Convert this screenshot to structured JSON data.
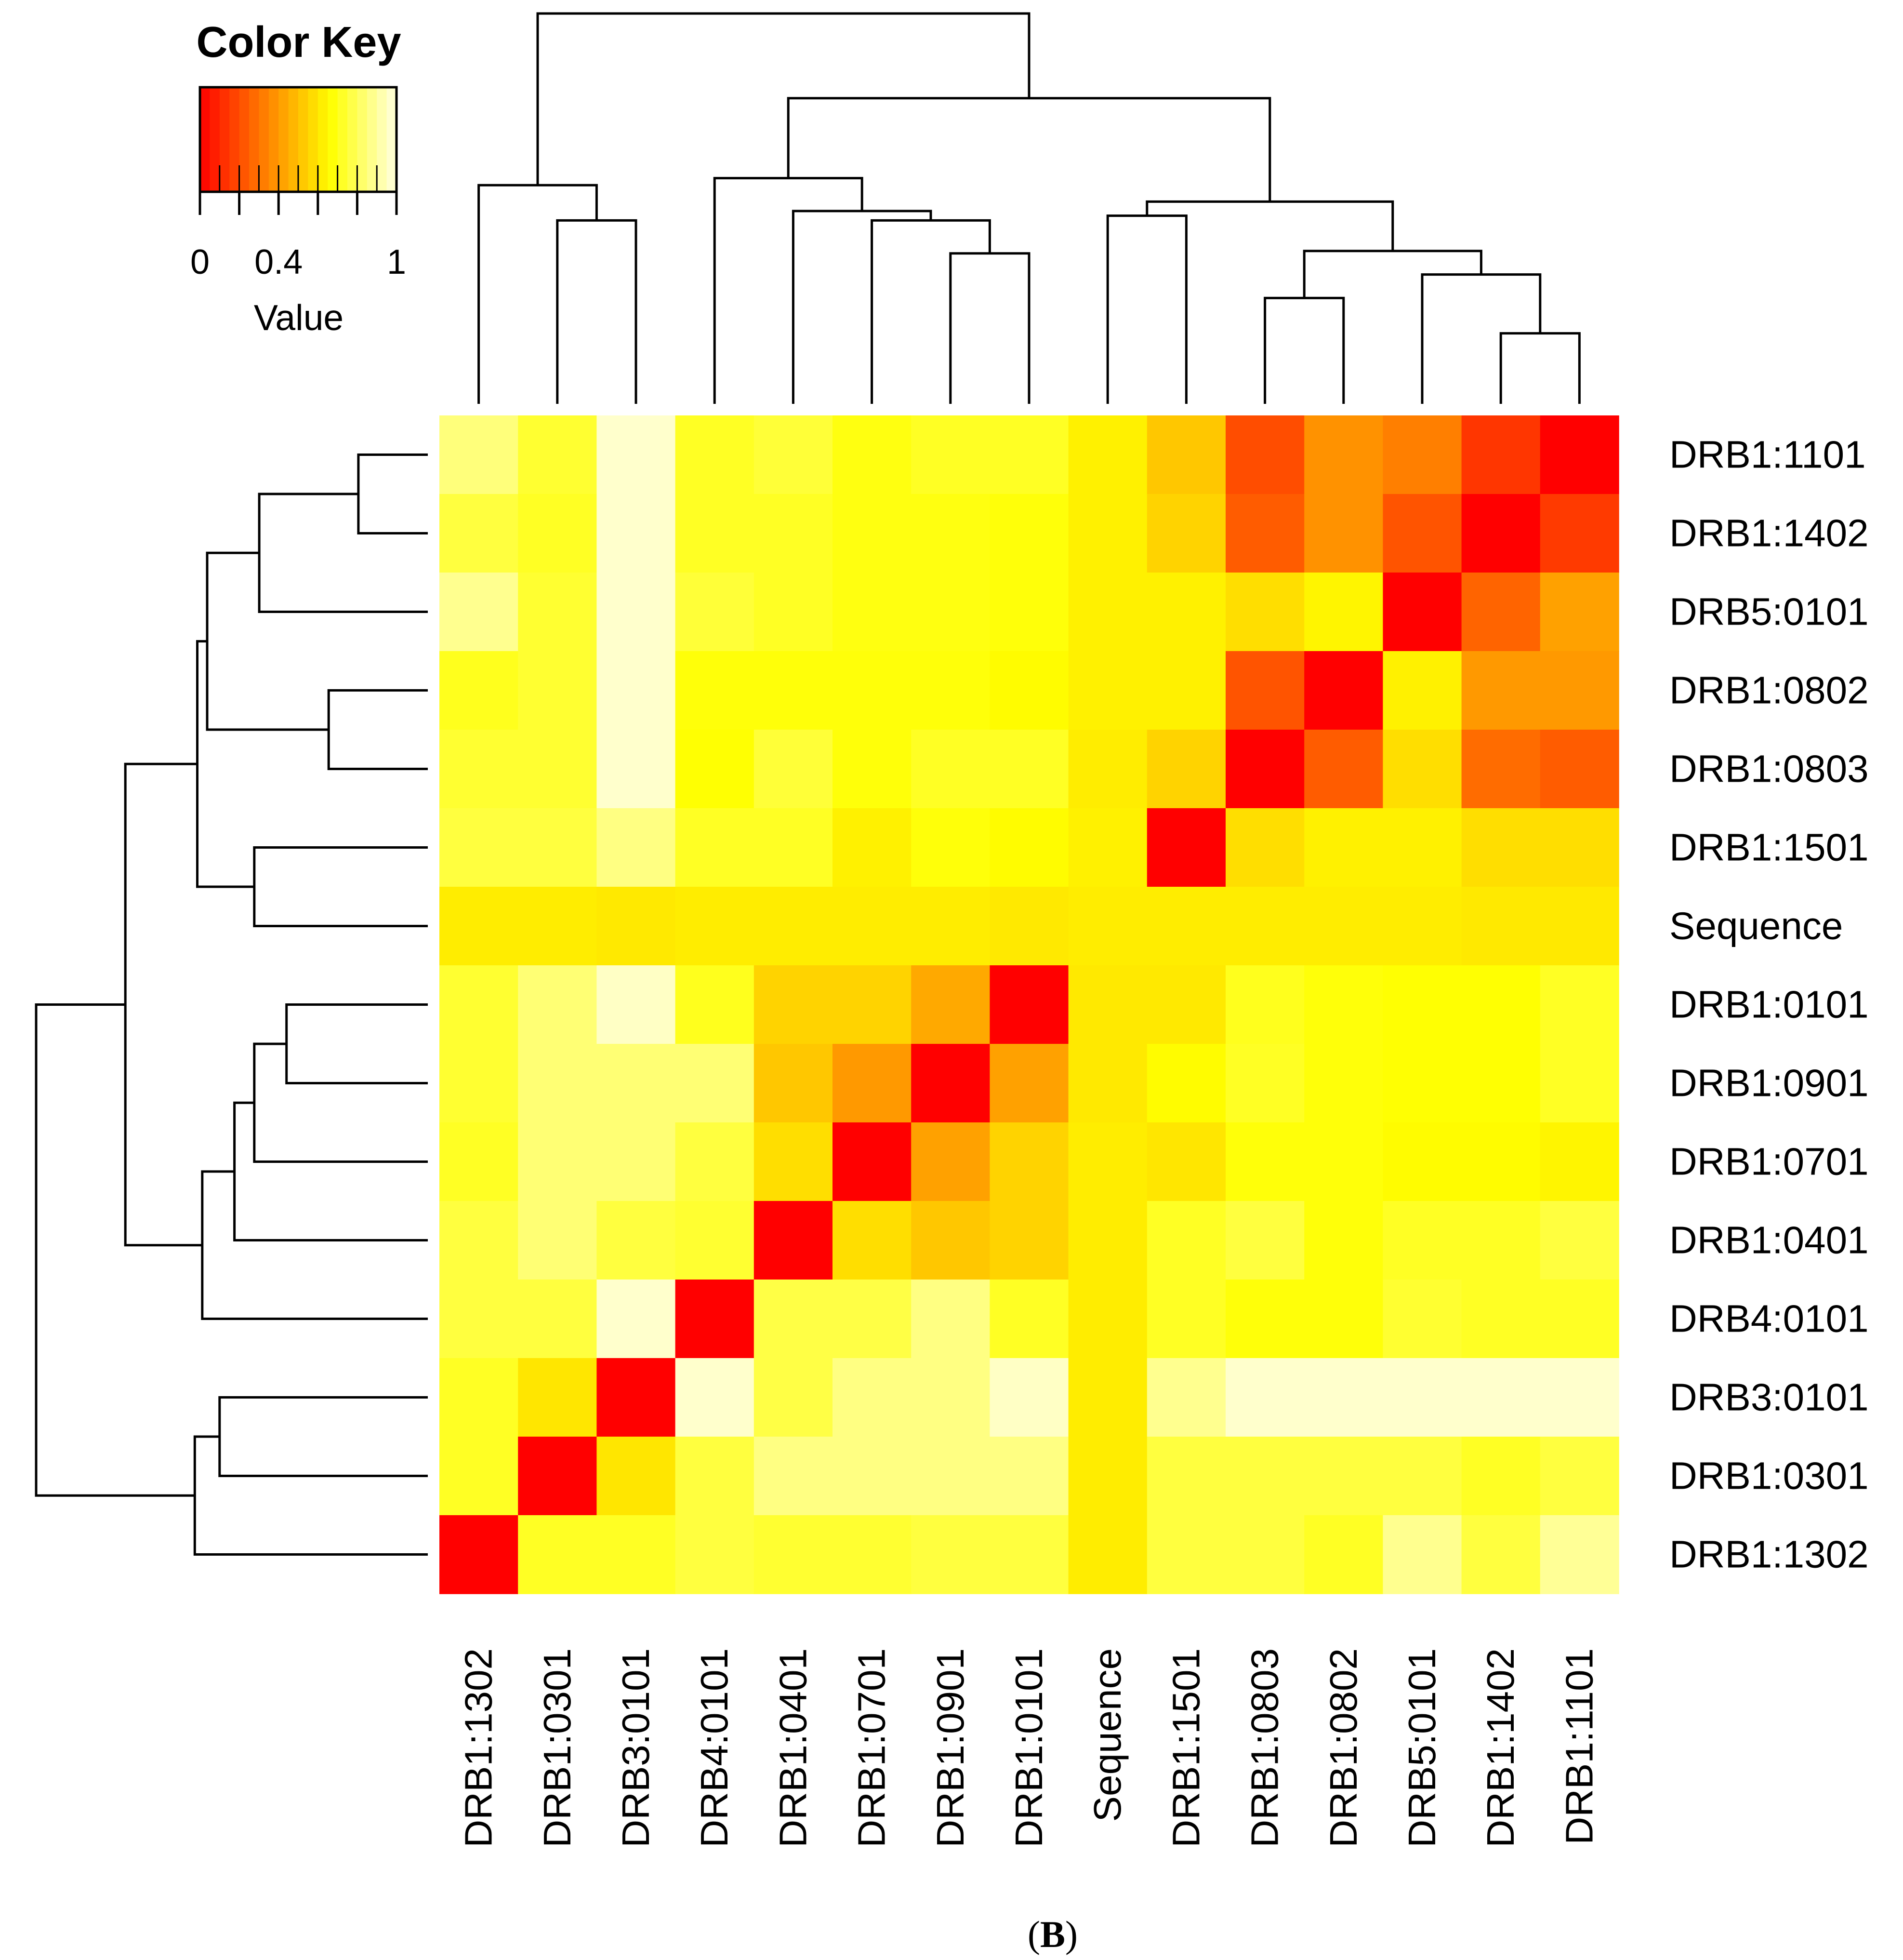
{
  "chart_data": {
    "type": "heatmap",
    "panel_label": "B",
    "color_key": {
      "title": "Color Key",
      "xlabel": "Value",
      "ticks": [
        "0",
        "0.4",
        "1"
      ],
      "range": [
        0,
        1
      ],
      "colors": [
        "#ff0000",
        "#ff8000",
        "#ffff00",
        "#ffffe0"
      ]
    },
    "row_labels": [
      "DRB1:1101",
      "DRB1:1402",
      "DRB5:0101",
      "DRB1:0802",
      "DRB1:0803",
      "DRB1:1501",
      "Sequence",
      "DRB1:0101",
      "DRB1:0901",
      "DRB1:0701",
      "DRB1:0401",
      "DRB4:0101",
      "DRB3:0101",
      "DRB1:0301",
      "DRB1:1302"
    ],
    "col_labels": [
      "DRB1:1302",
      "DRB1:0301",
      "DRB3:0101",
      "DRB4:0101",
      "DRB1:0401",
      "DRB1:0701",
      "DRB1:0901",
      "DRB1:0101",
      "Sequence",
      "DRB1:1501",
      "DRB1:0803",
      "DRB1:0802",
      "DRB5:0101",
      "DRB1:1402",
      "DRB1:1101"
    ],
    "values": [
      [
        0.85,
        0.74,
        0.97,
        0.72,
        0.75,
        0.69,
        0.72,
        0.72,
        0.63,
        0.52,
        0.2,
        0.38,
        0.33,
        0.14,
        0.0
      ],
      [
        0.76,
        0.72,
        0.97,
        0.72,
        0.72,
        0.69,
        0.69,
        0.68,
        0.63,
        0.55,
        0.24,
        0.38,
        0.22,
        0.0,
        0.15
      ],
      [
        0.88,
        0.74,
        0.97,
        0.75,
        0.72,
        0.69,
        0.69,
        0.68,
        0.63,
        0.63,
        0.58,
        0.64,
        0.0,
        0.26,
        0.42
      ],
      [
        0.71,
        0.74,
        0.97,
        0.68,
        0.68,
        0.68,
        0.68,
        0.66,
        0.63,
        0.63,
        0.22,
        0.0,
        0.63,
        0.4,
        0.4
      ],
      [
        0.74,
        0.74,
        0.97,
        0.67,
        0.75,
        0.68,
        0.72,
        0.72,
        0.62,
        0.55,
        0.0,
        0.24,
        0.58,
        0.28,
        0.24
      ],
      [
        0.76,
        0.76,
        0.86,
        0.72,
        0.72,
        0.63,
        0.68,
        0.66,
        0.63,
        0.0,
        0.58,
        0.63,
        0.63,
        0.58,
        0.58
      ],
      [
        0.62,
        0.62,
        0.61,
        0.62,
        0.62,
        0.62,
        0.62,
        0.61,
        0.62,
        0.62,
        0.62,
        0.62,
        0.62,
        0.61,
        0.61
      ],
      [
        0.74,
        0.84,
        0.96,
        0.71,
        0.55,
        0.55,
        0.44,
        0.0,
        0.61,
        0.61,
        0.71,
        0.68,
        0.67,
        0.67,
        0.72
      ],
      [
        0.74,
        0.84,
        0.84,
        0.84,
        0.52,
        0.4,
        0.0,
        0.42,
        0.61,
        0.66,
        0.72,
        0.68,
        0.67,
        0.67,
        0.72
      ],
      [
        0.72,
        0.84,
        0.84,
        0.76,
        0.58,
        0.0,
        0.42,
        0.55,
        0.62,
        0.6,
        0.68,
        0.68,
        0.66,
        0.66,
        0.64
      ],
      [
        0.76,
        0.84,
        0.76,
        0.74,
        0.0,
        0.58,
        0.52,
        0.55,
        0.62,
        0.72,
        0.76,
        0.68,
        0.72,
        0.72,
        0.76
      ],
      [
        0.76,
        0.76,
        0.97,
        0.0,
        0.77,
        0.77,
        0.86,
        0.72,
        0.62,
        0.72,
        0.68,
        0.68,
        0.74,
        0.72,
        0.72
      ],
      [
        0.72,
        0.6,
        0.0,
        0.97,
        0.77,
        0.86,
        0.86,
        0.96,
        0.62,
        0.88,
        0.97,
        0.97,
        0.97,
        0.97,
        0.97
      ],
      [
        0.72,
        0.0,
        0.6,
        0.76,
        0.86,
        0.86,
        0.86,
        0.86,
        0.62,
        0.76,
        0.76,
        0.76,
        0.76,
        0.72,
        0.76
      ],
      [
        0.0,
        0.72,
        0.72,
        0.76,
        0.74,
        0.74,
        0.76,
        0.76,
        0.62,
        0.76,
        0.76,
        0.72,
        0.88,
        0.76,
        0.89
      ]
    ],
    "col_dendrogram_merges": [
      [
        13,
        14,
        0.3
      ],
      [
        12,
        15,
        0.55
      ],
      [
        10,
        11,
        0.45
      ],
      [
        17,
        16,
        0.65
      ],
      [
        8,
        9,
        0.8
      ],
      [
        19,
        18,
        0.86
      ],
      [
        6,
        7,
        0.64
      ],
      [
        5,
        21,
        0.78
      ],
      [
        4,
        22,
        0.82
      ],
      [
        3,
        23,
        0.96
      ],
      [
        20,
        24,
        1.3
      ],
      [
        1,
        2,
        0.78
      ],
      [
        0,
        26,
        0.93
      ],
      [
        27,
        25,
        1.66
      ]
    ],
    "row_dendrogram_merges": [
      [
        0,
        1,
        0.28
      ],
      [
        2,
        15,
        0.68
      ],
      [
        3,
        4,
        0.4
      ],
      [
        16,
        17,
        0.89
      ],
      [
        5,
        6,
        0.7
      ],
      [
        18,
        19,
        0.93
      ],
      [
        7,
        8,
        0.57
      ],
      [
        9,
        21,
        0.7
      ],
      [
        10,
        22,
        0.78
      ],
      [
        11,
        23,
        0.91
      ],
      [
        20,
        24,
        1.22
      ],
      [
        12,
        13,
        0.84
      ],
      [
        14,
        26,
        0.94
      ],
      [
        25,
        27,
        1.58
      ]
    ]
  }
}
